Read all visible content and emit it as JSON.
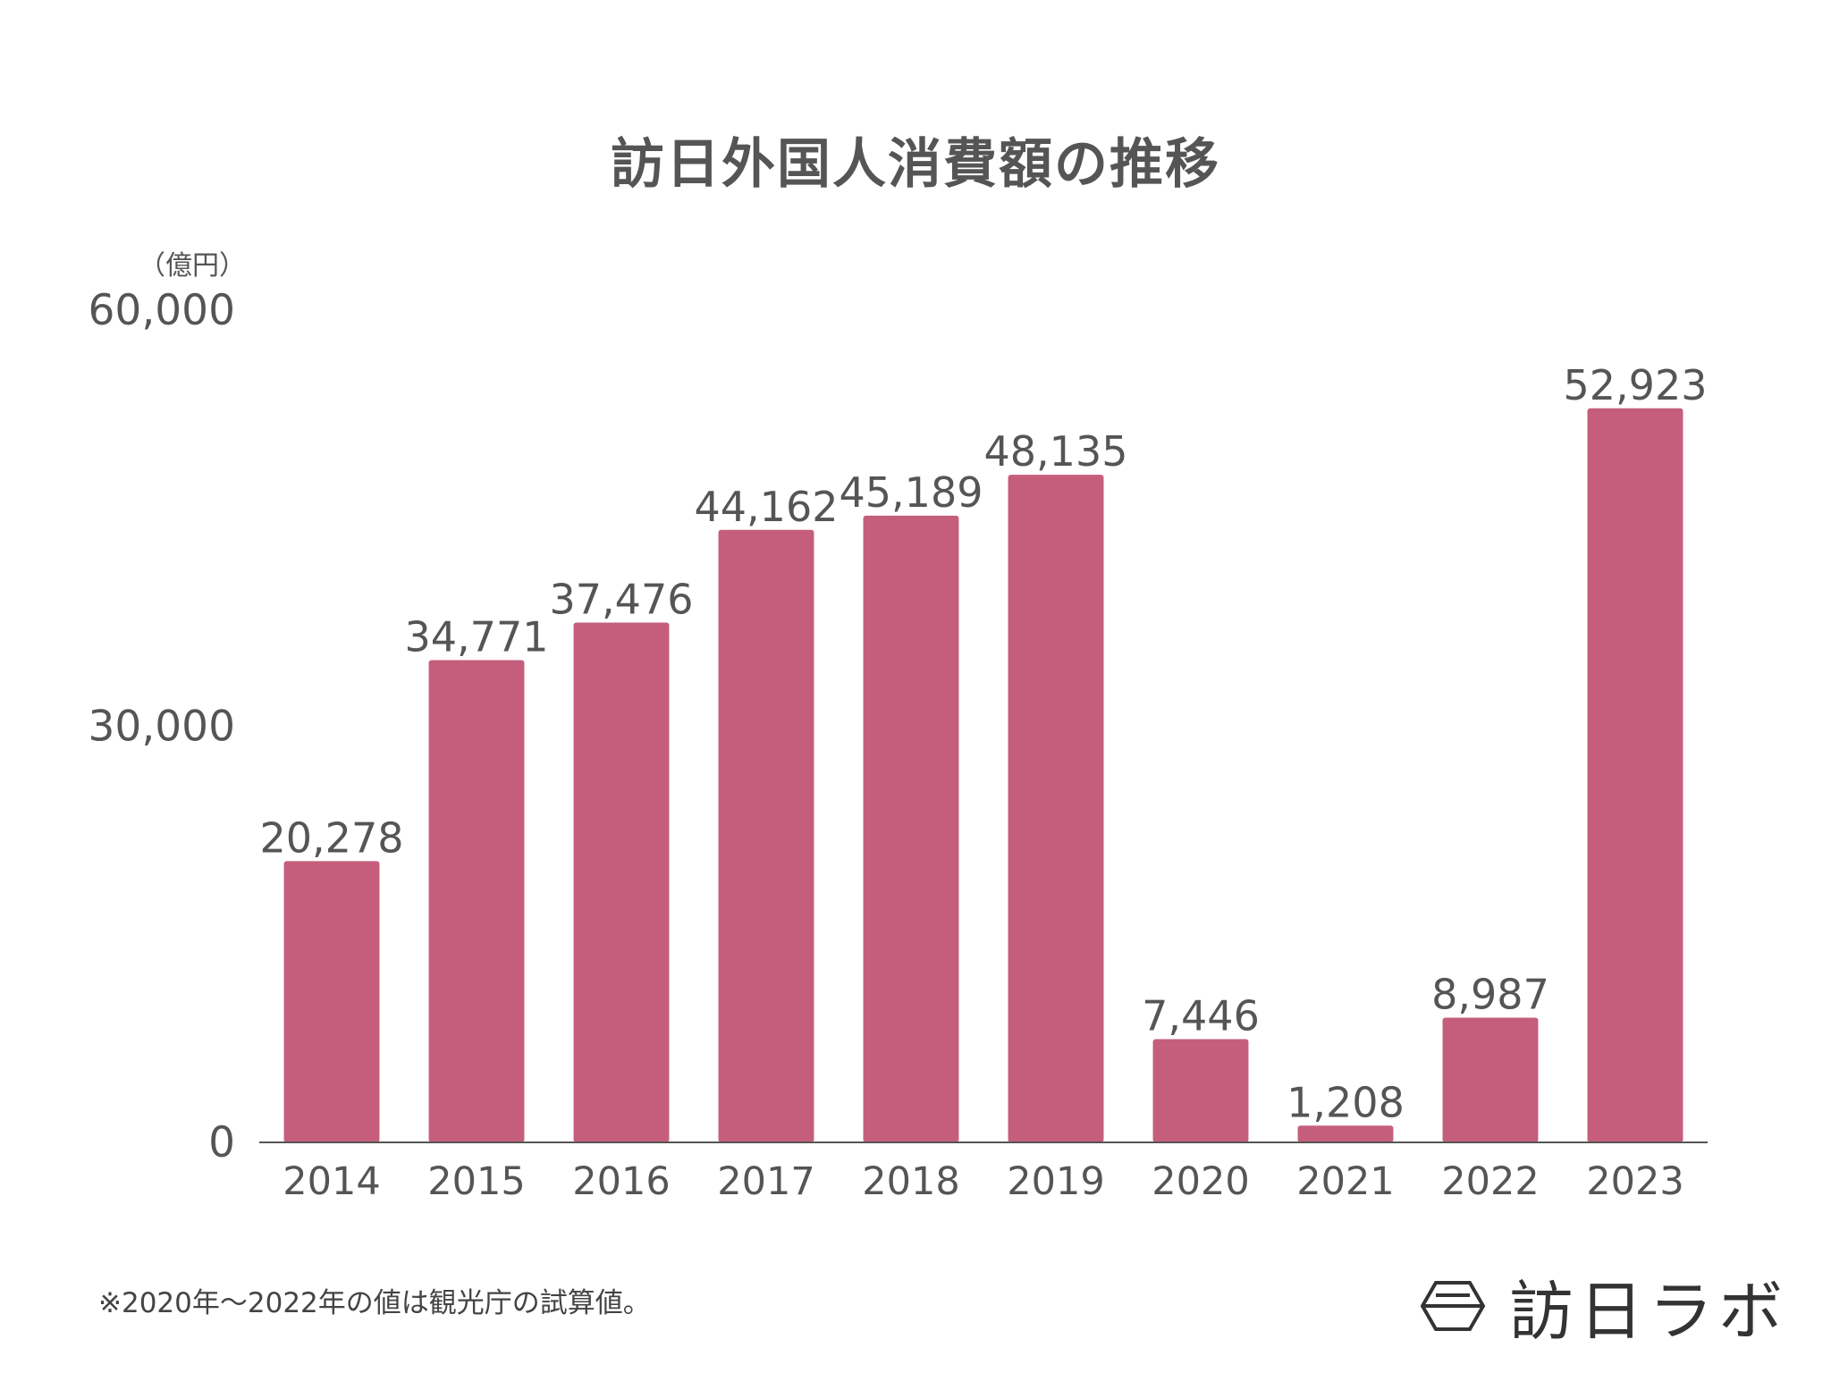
{
  "title": "訪日外国人消費額の推移",
  "unit": "（億円）",
  "footnote": "※2020年〜2022年の値は観光庁の試算値。",
  "brand": {
    "name": "訪日ラボ",
    "icon": "hexagon-logo-icon"
  },
  "colors": {
    "bar": "#c55e7c",
    "text": "#555555",
    "axis": "#555555"
  },
  "chart_data": {
    "type": "bar",
    "title": "訪日外国人消費額の推移",
    "ylabel": "（億円）",
    "xlabel": "",
    "ylim": [
      0,
      60000
    ],
    "yticks": [
      0,
      30000,
      60000
    ],
    "ytick_labels": [
      "0",
      "30,000",
      "60,000"
    ],
    "grid": false,
    "categories": [
      "2014",
      "2015",
      "2016",
      "2017",
      "2018",
      "2019",
      "2020",
      "2021",
      "2022",
      "2023"
    ],
    "values": [
      20278,
      34771,
      37476,
      44162,
      45189,
      48135,
      7446,
      1208,
      8987,
      52923
    ],
    "value_labels": [
      "20,278",
      "34,771",
      "37,476",
      "44,162",
      "45,189",
      "48,135",
      "7,446",
      "1,208",
      "8,987",
      "52,923"
    ]
  }
}
